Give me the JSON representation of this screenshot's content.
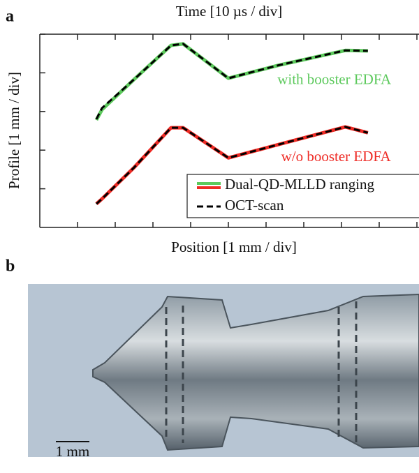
{
  "panel_labels": [
    "a",
    "b"
  ],
  "chart_data": {
    "type": "line",
    "top_axis_label": "Time [10 µs / div]",
    "xlabel": "Position [1 mm / div]",
    "ylabel": "Profile [1 mm / div]",
    "x": [
      1.5,
      1.65,
      2.5,
      3.48,
      3.8,
      5.0,
      6.35,
      8.1,
      8.7
    ],
    "series": [
      {
        "name": "Dual-QD-MLLD ranging",
        "color": "#5cc95c",
        "style": "solid",
        "values": [
          2.78,
          3.05,
          3.83,
          4.71,
          4.75,
          3.86,
          4.2,
          4.58,
          4.57
        ]
      },
      {
        "color": "#ee2a24",
        "style": "solid",
        "values": [
          0.61,
          0.74,
          1.55,
          2.58,
          2.58,
          1.8,
          2.15,
          2.6,
          2.45
        ]
      },
      {
        "name": "OCT-scan",
        "color": "#000000",
        "style": "dashed",
        "values": [
          2.8,
          3.09,
          3.83,
          4.71,
          4.75,
          3.86,
          4.2,
          4.58,
          4.57
        ]
      },
      {
        "color": "#000000",
        "style": "dashed",
        "values": [
          0.61,
          0.74,
          1.55,
          2.58,
          2.58,
          1.8,
          2.15,
          2.6,
          2.45
        ]
      }
    ],
    "annotations": [
      {
        "text": "with booster EDFA",
        "color": "#5cc95c",
        "x": 6.3,
        "y": 3.8
      },
      {
        "text": "w/o booster EDFA",
        "color": "#ee2a24",
        "x": 6.4,
        "y": 1.8
      }
    ],
    "xlim": [
      0,
      10
    ],
    "ylim": [
      0,
      5
    ],
    "xticks": [
      1,
      2,
      3,
      4,
      5,
      6,
      7,
      8,
      9,
      10
    ],
    "yticks": [
      1,
      2,
      3,
      4,
      5
    ]
  },
  "photo": {
    "scale_bar": "1 mm"
  }
}
